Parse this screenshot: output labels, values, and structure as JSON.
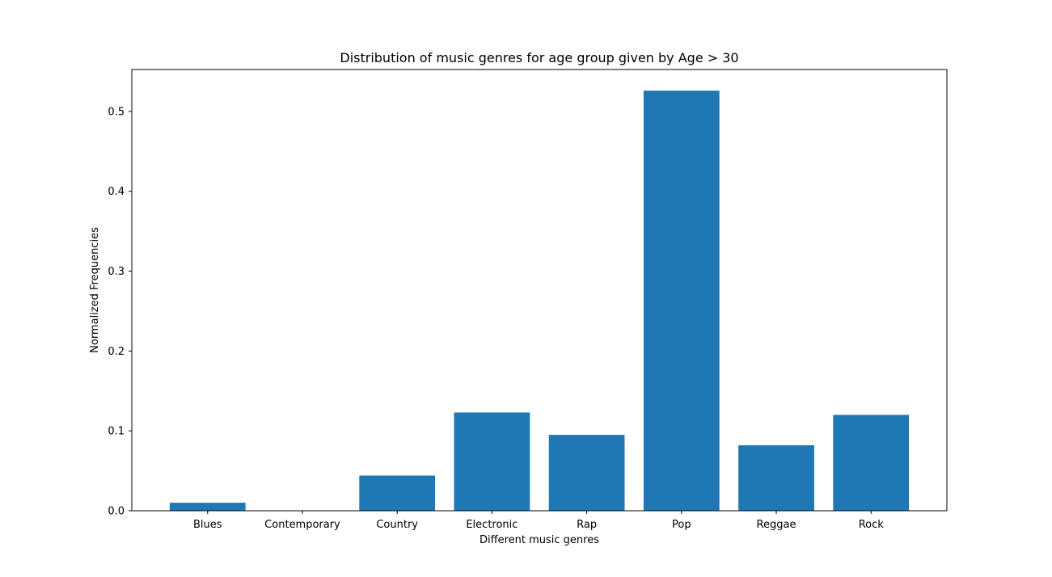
{
  "chart_data": {
    "type": "bar",
    "title": "Distribution of music genres for age group given by Age > 30",
    "xlabel": "Different music genres",
    "ylabel": "Normalized Frequencies",
    "categories": [
      "Blues",
      "Contemporary",
      "Country",
      "Electronic",
      "Rap",
      "Pop",
      "Reggae",
      "Rock"
    ],
    "values": [
      0.01,
      0.0,
      0.044,
      0.123,
      0.095,
      0.526,
      0.082,
      0.12
    ],
    "ylim": [
      0,
      0.5525
    ],
    "yticks": [
      "0.0",
      "0.1",
      "0.2",
      "0.3",
      "0.4",
      "0.5"
    ],
    "bar_color": "#1f77b4",
    "grid": false
  }
}
